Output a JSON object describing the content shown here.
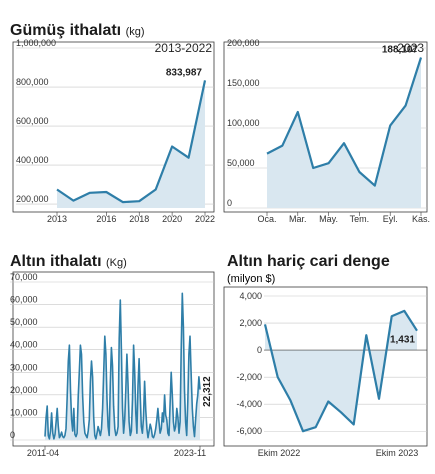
{
  "chart_data": [
    {
      "id": "silver2013",
      "type": "area",
      "title": "Gümüş ithalatı",
      "title_unit": "(kg)",
      "period": "2013-2022",
      "x": [
        "2013",
        "2014",
        "2015",
        "2016",
        "2017",
        "2018",
        "2019",
        "2020",
        "2021",
        "2022"
      ],
      "y": [
        275000,
        218000,
        258000,
        262000,
        210000,
        215000,
        275000,
        495000,
        438000,
        833987
      ],
      "xtick_labels": [
        "2013",
        "2016",
        "2018",
        "2020",
        "2022"
      ],
      "ytick_labels": [
        "1,000,000",
        "800,000",
        "600,000",
        "400,000",
        "200,000"
      ],
      "ylim": [
        180000,
        1000000
      ],
      "label_last": "833,987",
      "grid": "horizontal",
      "color": "#2e7ea8",
      "fill": "#d9e7f0"
    },
    {
      "id": "silver2023",
      "type": "area",
      "period": "2023",
      "x": [
        "Oca.",
        "Şub.",
        "Mar.",
        "Nis.",
        "May.",
        "Haz.",
        "Tem.",
        "Ağu.",
        "Eyl.",
        "Eki.",
        "Kas."
      ],
      "y": [
        68000,
        78000,
        120000,
        50000,
        56000,
        81000,
        45000,
        28000,
        103000,
        128000,
        188107
      ],
      "xtick_labels": [
        "Oca.",
        "Mar.",
        "May.",
        "Tem.",
        "Eyl.",
        "Kas."
      ],
      "ytick_labels": [
        "200,000",
        "150,000",
        "100,000",
        "50,000",
        "0"
      ],
      "ylim": [
        0,
        200000
      ],
      "label_last": "188,107",
      "grid": "horizontal",
      "color": "#2e7ea8",
      "fill": "#d9e7f0"
    },
    {
      "id": "gold",
      "type": "area",
      "title": "Altın ithalatı",
      "title_unit": "(Kg)",
      "x_start": "2011-04",
      "x_end": "2023-11",
      "y": [
        1500,
        10000,
        15000,
        2000,
        500,
        4000,
        12000,
        3000,
        500,
        2500,
        8000,
        14000,
        6000,
        1000,
        2000,
        3500,
        1500,
        1000,
        2000,
        5000,
        18000,
        35000,
        42000,
        22000,
        9000,
        4000,
        14000,
        2500,
        1500,
        3000,
        19000,
        30000,
        42000,
        38000,
        20000,
        8000,
        3000,
        2000,
        1000,
        4000,
        9000,
        26000,
        35000,
        28000,
        10000,
        2000,
        500,
        3000,
        6000,
        4000,
        2000,
        5000,
        14000,
        30000,
        46000,
        38000,
        18000,
        6000,
        2000,
        25000,
        41000,
        33000,
        15000,
        5000,
        2000,
        3000,
        6000,
        45000,
        62000,
        40000,
        14000,
        3000,
        9000,
        22000,
        38000,
        25000,
        8000,
        2000,
        4000,
        18000,
        42000,
        30000,
        12000,
        3000,
        24000,
        36000,
        20000,
        6000,
        3000,
        10000,
        26000,
        13000,
        5000,
        1000,
        4000,
        7000,
        5000,
        1500,
        1000,
        2500,
        5000,
        9000,
        14000,
        8000,
        3000,
        5000,
        12000,
        8000,
        20000,
        11000,
        9000,
        3000,
        2000,
        16000,
        30000,
        20000,
        8000,
        4000,
        6000,
        14000,
        10000,
        3000,
        8000,
        40000,
        65000,
        50000,
        22000,
        8000,
        2000,
        17000,
        38000,
        46000,
        30000,
        14000,
        6000,
        1500,
        9000,
        16000,
        20000,
        28000,
        22312
      ],
      "xtick_labels": [
        "2011-04",
        "2023-11"
      ],
      "ytick_labels": [
        "70,000",
        "60,000",
        "50,000",
        "40,000",
        "30,000",
        "20,000",
        "10,000",
        "0"
      ],
      "ylim": [
        0,
        70000
      ],
      "label_last": "22,312",
      "grid": "horizontal",
      "color": "#2e7ea8",
      "fill": "#d9e7f0"
    },
    {
      "id": "balance",
      "type": "area",
      "title": "Altın hariç cari denge",
      "subtitle": "(milyon $)",
      "x": [
        "Eki.22",
        "Kas.22",
        "Ara.22",
        "Oca.23",
        "Şub.23",
        "Mar.23",
        "Nis.23",
        "May.23",
        "Haz.23",
        "Tem.23",
        "Ağu.23",
        "Eyl.23",
        "Eki.23"
      ],
      "y": [
        1900,
        -2000,
        -3700,
        -6000,
        -5700,
        -3800,
        -4600,
        -5500,
        1100,
        -3600,
        2500,
        2900,
        1431
      ],
      "xtick_labels": [
        "Ekim 2022",
        "Ekim 2023"
      ],
      "ytick_labels": [
        "4,000",
        "2,000",
        "0",
        "-2,000",
        "-4,000",
        "-6,000"
      ],
      "ylim": [
        -6500,
        4000
      ],
      "label_last": "1,431",
      "grid": "horizontal",
      "color": "#2e7ea8",
      "fill": "#d9e7f0"
    }
  ]
}
